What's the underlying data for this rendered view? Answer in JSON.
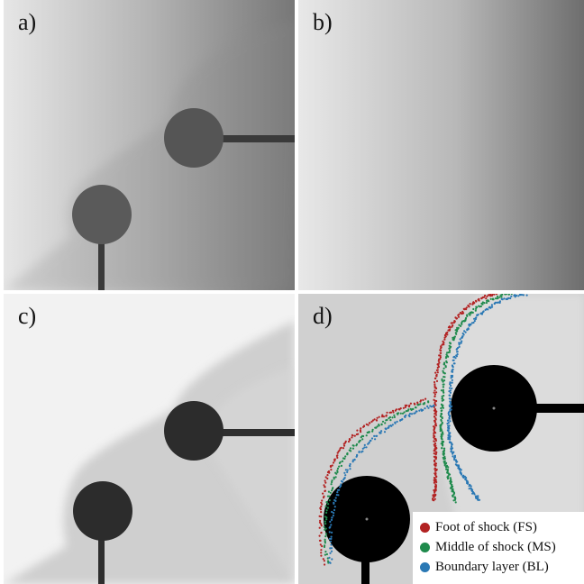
{
  "panels": [
    {
      "label": "a)"
    },
    {
      "label": "b)"
    },
    {
      "label": "c)"
    },
    {
      "label": "d)"
    }
  ],
  "legend": [
    {
      "label": "Foot of shock (FS)",
      "color": "#b22222"
    },
    {
      "label": "Middle of shock (MS)",
      "color": "#1f8a4c"
    },
    {
      "label": "Boundary layer (BL)",
      "color": "#2a78b4"
    }
  ]
}
